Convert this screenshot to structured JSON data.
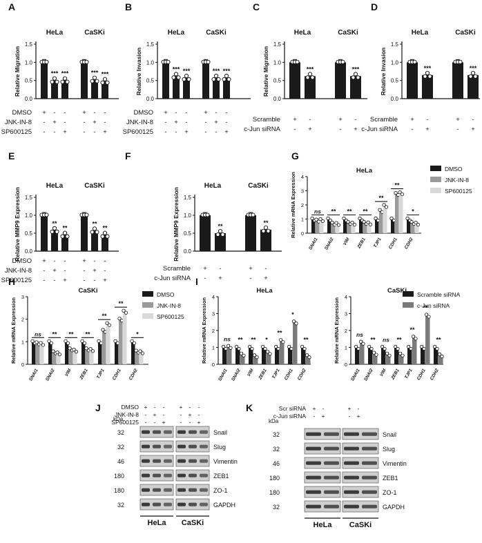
{
  "colors": {
    "black": "#1a1a1a",
    "gray": "#9a9a9a",
    "light": "#d9d9d9",
    "dark_gray": "#7a7a7a"
  },
  "panels": {
    "A": {
      "letter": "A",
      "title_groups": [
        "HeLa",
        "CaSKi"
      ],
      "ylabel": "Relative Migration"
    },
    "B": {
      "letter": "B",
      "title_groups": [
        "HeLa",
        "CaSKi"
      ],
      "ylabel": "Relative Invasion"
    },
    "C": {
      "letter": "C",
      "title_groups": [
        "HeLa",
        "CaSKi"
      ],
      "ylabel": "Relative Migration"
    },
    "D": {
      "letter": "D",
      "title_groups": [
        "HeLa",
        "CaSKi"
      ],
      "ylabel": "Relative Invasion"
    },
    "E": {
      "letter": "E",
      "title_groups": [
        "HeLa",
        "CaSKi"
      ],
      "ylabel": "Relative MMP9 Expression"
    },
    "F": {
      "letter": "F",
      "title_groups": [
        "HeLa",
        "CaSKi"
      ],
      "ylabel": "Relative MMP9 Expression"
    },
    "G": {
      "letter": "G",
      "title": "HeLa",
      "ylabel": "Relative mRNA Expression"
    },
    "H": {
      "letter": "H",
      "title": "CaSKi",
      "ylabel": "Relative mRNA Expression"
    },
    "I": {
      "letter": "I",
      "titles": [
        "HeLa",
        "CaSKi"
      ],
      "ylabel": "Relative mRNA Expression"
    },
    "J": {
      "letter": "J"
    },
    "K": {
      "letter": "K"
    }
  },
  "treat3": {
    "rows": [
      "DMSO",
      "JNK-IN-8",
      "SP600125"
    ],
    "signs": [
      [
        "+",
        "-",
        "-",
        "+",
        "-",
        "-"
      ],
      [
        "-",
        "+",
        "-",
        "-",
        "+",
        "-"
      ],
      [
        "-",
        "-",
        "+",
        "-",
        "-",
        "+"
      ]
    ]
  },
  "treat2": {
    "rows": [
      "Scramble",
      "c-Jun siRNA"
    ],
    "signs": [
      [
        "+",
        "-",
        "+",
        "-"
      ],
      [
        "-",
        "+",
        "-",
        "+"
      ]
    ]
  },
  "legend3": [
    "DMSO",
    "JNK-IN-8",
    "SP600125"
  ],
  "legend2": [
    "Scramble siRNA",
    "c-Jun siRNA"
  ],
  "genes": [
    "SNAI1",
    "SNAI2",
    "VIM",
    "ZEB1",
    "TJP1",
    "CDH1",
    "CDH2"
  ],
  "chart_data": [
    {
      "panel": "A",
      "type": "bar",
      "groups": [
        "HeLa",
        "CaSKi"
      ],
      "ylim": [
        0,
        1.5
      ],
      "yticks": [
        "0.0",
        "0.5",
        "1.0",
        "1.5"
      ],
      "values": [
        1.0,
        0.5,
        0.5,
        1.0,
        0.52,
        0.48
      ],
      "sig": [
        "",
        "***",
        "***",
        "",
        "***",
        "***"
      ]
    },
    {
      "panel": "B",
      "type": "bar",
      "groups": [
        "HeLa",
        "CaSKi"
      ],
      "ylim": [
        0,
        1.5
      ],
      "yticks": [
        "0.0",
        "0.5",
        "1.0",
        "1.5"
      ],
      "values": [
        1.0,
        0.62,
        0.57,
        1.0,
        0.57,
        0.57
      ],
      "sig": [
        "",
        "***",
        "***",
        "",
        "***",
        "***"
      ]
    },
    {
      "panel": "C",
      "type": "bar",
      "groups": [
        "HeLa",
        "CaSKi"
      ],
      "ylim": [
        0,
        1.5
      ],
      "yticks": [
        "0.0",
        "0.5",
        "1.0",
        "1.5"
      ],
      "values": [
        1.0,
        0.62,
        1.0,
        0.62
      ],
      "sig": [
        "",
        "***",
        "",
        "***"
      ]
    },
    {
      "panel": "D",
      "type": "bar",
      "groups": [
        "HeLa",
        "CaSKi"
      ],
      "ylim": [
        0,
        1.5
      ],
      "yticks": [
        "0.0",
        "0.5",
        "1.0",
        "1.5"
      ],
      "values": [
        1.0,
        0.65,
        1.0,
        0.65
      ],
      "sig": [
        "",
        "***",
        "",
        "***"
      ]
    },
    {
      "panel": "E",
      "type": "bar",
      "groups": [
        "HeLa",
        "CaSKi"
      ],
      "ylim": [
        0,
        1.5
      ],
      "yticks": [
        "0.0",
        "0.5",
        "1.0",
        "1.5"
      ],
      "values": [
        1.0,
        0.58,
        0.45,
        1.0,
        0.57,
        0.45
      ],
      "sig": [
        "",
        "**",
        "**",
        "",
        "**",
        "**"
      ]
    },
    {
      "panel": "F",
      "type": "bar",
      "groups": [
        "HeLa",
        "CaSKi"
      ],
      "ylim": [
        0,
        1.5
      ],
      "yticks": [
        "0.0",
        "0.5",
        "1.0",
        "1.5"
      ],
      "values": [
        1.0,
        0.5,
        1.0,
        0.6
      ],
      "sig": [
        "",
        "**",
        "",
        "**"
      ]
    },
    {
      "panel": "G",
      "type": "bar",
      "ylim": [
        0,
        4
      ],
      "yticks": [
        "0",
        "1",
        "2",
        "3",
        "4"
      ],
      "series": [
        {
          "name": "DMSO",
          "values": [
            1.0,
            1.0,
            1.0,
            1.0,
            1.0,
            1.0,
            1.0
          ]
        },
        {
          "name": "JNK-IN-8",
          "values": [
            0.92,
            0.7,
            0.75,
            0.75,
            1.6,
            2.8,
            0.75
          ]
        },
        {
          "name": "SP600125",
          "values": [
            0.95,
            0.68,
            0.7,
            0.72,
            1.95,
            2.85,
            0.7
          ]
        }
      ],
      "sig": [
        "ns",
        "**",
        "**",
        "**",
        "**",
        "**",
        "*"
      ]
    },
    {
      "panel": "H",
      "type": "bar",
      "ylim": [
        0,
        3
      ],
      "yticks": [
        "0",
        "1",
        "2",
        "3"
      ],
      "series": [
        {
          "name": "DMSO",
          "values": [
            1.0,
            1.0,
            1.0,
            1.0,
            1.0,
            1.0,
            1.0
          ]
        },
        {
          "name": "JNK-IN-8",
          "values": [
            0.95,
            0.55,
            0.68,
            0.68,
            1.5,
            2.0,
            0.58
          ]
        },
        {
          "name": "SP600125",
          "values": [
            0.92,
            0.5,
            0.62,
            0.65,
            1.8,
            2.35,
            0.55
          ]
        }
      ],
      "sig": [
        "ns",
        "**",
        "**",
        "**",
        "**",
        "**",
        "*"
      ]
    },
    {
      "panel": "I-HeLa",
      "type": "bar",
      "ylim": [
        0,
        4
      ],
      "yticks": [
        "0",
        "1",
        "2",
        "3",
        "4"
      ],
      "series": [
        {
          "name": "Scramble siRNA",
          "values": [
            1.0,
            1.0,
            1.0,
            1.0,
            1.0,
            1.0,
            1.0
          ]
        },
        {
          "name": "c-Jun siRNA",
          "values": [
            1.05,
            0.6,
            0.5,
            0.7,
            1.4,
            2.5,
            0.5
          ]
        }
      ],
      "sig": [
        "ns",
        "**",
        "**",
        "*",
        "**",
        "*",
        "**"
      ]
    },
    {
      "panel": "I-CaSKi",
      "type": "bar",
      "ylim": [
        0,
        4
      ],
      "yticks": [
        "0",
        "1",
        "2",
        "3",
        "4"
      ],
      "series": [
        {
          "name": "Scramble siRNA",
          "values": [
            1.0,
            1.0,
            1.0,
            1.0,
            1.0,
            1.0,
            1.0
          ]
        },
        {
          "name": "c-Jun siRNA",
          "values": [
            1.3,
            0.65,
            0.6,
            0.6,
            1.6,
            2.9,
            0.55
          ]
        }
      ],
      "sig": [
        "ns",
        "**",
        "ns",
        "**",
        "**",
        "**",
        "**"
      ]
    }
  ],
  "blotJ": {
    "treat_rows": [
      "DMSO",
      "JNK-IN-8",
      "SP600125"
    ],
    "signs": [
      [
        "+",
        "-",
        "-",
        "+",
        "-",
        "-"
      ],
      [
        "-",
        "+",
        "-",
        "-",
        "+",
        "-"
      ],
      [
        "-",
        "-",
        "+",
        "-",
        "-",
        "+"
      ]
    ],
    "kda_label": "kDa",
    "kda": [
      "32",
      "32",
      "46",
      "180",
      "180",
      "32"
    ],
    "proteins": [
      "Snail",
      "Slug",
      "Vimentin",
      "ZEB1",
      "ZO-1",
      "GAPDH"
    ],
    "cells": [
      "HeLa",
      "CaSKi"
    ]
  },
  "blotK": {
    "treat_rows": [
      "Scr siRNA",
      "c-Jun siRNA"
    ],
    "signs": [
      [
        "+",
        "-",
        "+",
        "-"
      ],
      [
        "-",
        "+",
        "-",
        "+"
      ]
    ],
    "kda_label": "kDa",
    "kda": [
      "32",
      "32",
      "46",
      "180",
      "180",
      "32"
    ],
    "proteins": [
      "Snail",
      "Slug",
      "Vimentin",
      "ZEB1",
      "ZO-1",
      "GAPDH"
    ],
    "cells": [
      "HeLa",
      "CaSKi"
    ]
  }
}
